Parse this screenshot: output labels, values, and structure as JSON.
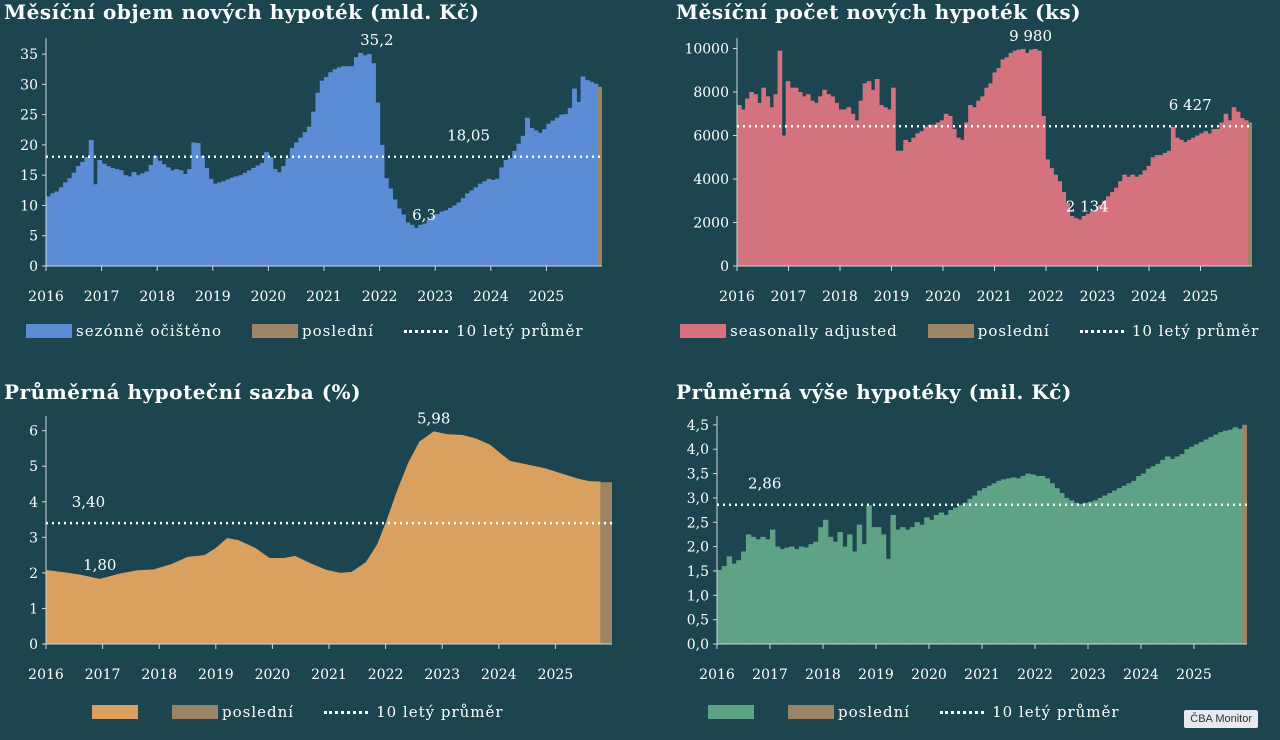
{
  "colors": {
    "bg": "#1d4550",
    "blue": "#5b8dd6",
    "red": "#d4737e",
    "orange": "#d9a060",
    "green": "#5fa386",
    "last": "#9c8466",
    "avg": "#ffffff"
  },
  "years": [
    "2016",
    "2017",
    "2018",
    "2019",
    "2020",
    "2021",
    "2022",
    "2023",
    "2024",
    "2025"
  ],
  "badge": "ČBA Monitor",
  "chart_data": [
    {
      "type": "bar",
      "title": "Měsíční objem nových hypoték (mld. Kč)",
      "color_key": "blue",
      "x_start": 2016.0,
      "ylim": [
        0,
        37
      ],
      "yticks": [
        "0",
        "5",
        "10",
        "15",
        "20",
        "25",
        "30",
        "35"
      ],
      "yticks_vals": [
        0,
        5,
        10,
        15,
        20,
        25,
        30,
        35
      ],
      "average": 18.05,
      "average_label": "18,05",
      "annotations": [
        {
          "text": "35,2",
          "x": 2021.95,
          "y": 35.2
        },
        {
          "text": "6,3",
          "x": 2022.8,
          "y": 6.3
        }
      ],
      "legend": {
        "series": "sezónně očištěno",
        "last": "poslední",
        "avg": "10 letý průměr"
      },
      "values": [
        11.5,
        12.0,
        12.3,
        13.0,
        13.8,
        14.5,
        15.4,
        16.5,
        17.2,
        18.0,
        20.8,
        13.5,
        17.5,
        16.9,
        16.5,
        16.2,
        16.0,
        15.8,
        15.0,
        14.8,
        15.5,
        15.0,
        15.3,
        15.6,
        16.7,
        18.2,
        17.4,
        16.8,
        16.3,
        15.8,
        16.0,
        15.8,
        15.2,
        16.0,
        20.4,
        20.3,
        18.2,
        16.2,
        14.4,
        13.6,
        13.8,
        14.0,
        14.3,
        14.6,
        14.8,
        15.0,
        15.4,
        15.8,
        16.2,
        16.6,
        17.0,
        18.8,
        18.0,
        16.0,
        15.5,
        16.5,
        17.8,
        19.5,
        20.4,
        21.2,
        22.1,
        23.0,
        25.5,
        28.6,
        30.6,
        31.2,
        32.0,
        32.5,
        32.8,
        33.0,
        33.0,
        33.0,
        34.5,
        35.2,
        34.8,
        35.0,
        33.5,
        27.0,
        20.0,
        14.5,
        12.8,
        11.0,
        9.5,
        8.5,
        7.2,
        6.8,
        6.3,
        6.8,
        7.0,
        7.6,
        8.2,
        8.6,
        9.0,
        9.2,
        9.6,
        10.0,
        10.5,
        11.2,
        12.0,
        12.5,
        13.0,
        13.6,
        14.0,
        14.4,
        14.2,
        14.4,
        16.3,
        17.5,
        17.8,
        19.0,
        20.2,
        21.5,
        24.5,
        22.8,
        22.4,
        22.0,
        22.6,
        23.5,
        24.0,
        24.5,
        25.0,
        25.1,
        26.1,
        29.3,
        27.1,
        31.3,
        30.7,
        30.4,
        30.1
      ],
      "last": 29.6
    },
    {
      "type": "bar",
      "title": "Měsíční počet nových hypoték (ks)",
      "color_key": "red",
      "x_start": 2016.0,
      "ylim": [
        0,
        10300
      ],
      "yticks": [
        "0",
        "2000",
        "4000",
        "6000",
        "8000",
        "10000"
      ],
      "yticks_vals": [
        0,
        2000,
        4000,
        6000,
        8000,
        10000
      ],
      "average": 6427,
      "average_label": "6 427",
      "annotations": [
        {
          "text": "9 980",
          "x": 2021.7,
          "y": 9980
        },
        {
          "text": "2 134",
          "x": 2022.8,
          "y": 2134
        }
      ],
      "legend": {
        "series": "seasonally adjusted",
        "last": "poslední",
        "avg": "10 letý průměr"
      },
      "values": [
        7400,
        7200,
        7700,
        8000,
        7900,
        7500,
        8200,
        7800,
        7300,
        7900,
        9900,
        6000,
        8500,
        8200,
        8200,
        8000,
        7800,
        7900,
        7600,
        7500,
        7800,
        8100,
        7900,
        7800,
        7500,
        7200,
        7200,
        7300,
        7000,
        6700,
        7600,
        8400,
        8500,
        8100,
        8600,
        7400,
        7300,
        7200,
        8200,
        5300,
        5300,
        5800,
        5700,
        5900,
        6100,
        6200,
        6400,
        6500,
        6500,
        6600,
        6700,
        7000,
        6900,
        6300,
        5900,
        5800,
        6600,
        7400,
        7300,
        7600,
        7800,
        8200,
        8400,
        8900,
        9100,
        9500,
        9600,
        9800,
        9900,
        9950,
        9980,
        9800,
        9950,
        9980,
        9900,
        6900,
        4900,
        4500,
        4200,
        3900,
        3400,
        2900,
        2300,
        2200,
        2134,
        2300,
        2400,
        2500,
        2600,
        2800,
        3000,
        3200,
        3400,
        3600,
        3900,
        4200,
        4100,
        4200,
        4100,
        4200,
        4400,
        4600,
        5000,
        5100,
        5100,
        5200,
        5300,
        6400,
        5900,
        5800,
        5700,
        5800,
        5900,
        6000,
        6100,
        6200,
        6100,
        6300,
        6300,
        6600,
        7000,
        6700,
        7300,
        7100,
        6800,
        6700
      ],
      "last": 6600
    },
    {
      "type": "area",
      "title": "Průměrná hypoteční sazba (%)",
      "color_key": "orange",
      "x_start": 2016.0,
      "ylim": [
        0,
        6.3
      ],
      "yticks": [
        "0",
        "1",
        "2",
        "3",
        "4",
        "5",
        "6"
      ],
      "yticks_vals": [
        0,
        1,
        2,
        3,
        4,
        5,
        6
      ],
      "average": 3.4,
      "average_label": "3,40",
      "annotations": [
        {
          "text": "1,80",
          "x": 2016.95,
          "y": 1.86
        },
        {
          "text": "5,98",
          "x": 2022.85,
          "y": 5.98
        }
      ],
      "legend": {
        "series": "",
        "last": "poslední",
        "avg": "10 letý průměr"
      },
      "points": [
        [
          2016.0,
          2.08
        ],
        [
          2016.3,
          2.02
        ],
        [
          2016.6,
          1.95
        ],
        [
          2016.95,
          1.83
        ],
        [
          2017.3,
          1.98
        ],
        [
          2017.6,
          2.07
        ],
        [
          2017.9,
          2.1
        ],
        [
          2018.2,
          2.24
        ],
        [
          2018.5,
          2.45
        ],
        [
          2018.8,
          2.5
        ],
        [
          2019.0,
          2.7
        ],
        [
          2019.2,
          2.98
        ],
        [
          2019.4,
          2.92
        ],
        [
          2019.7,
          2.7
        ],
        [
          2019.95,
          2.42
        ],
        [
          2020.2,
          2.42
        ],
        [
          2020.4,
          2.48
        ],
        [
          2020.7,
          2.25
        ],
        [
          2020.95,
          2.09
        ],
        [
          2021.2,
          2.0
        ],
        [
          2021.4,
          2.03
        ],
        [
          2021.65,
          2.3
        ],
        [
          2021.85,
          2.8
        ],
        [
          2022.0,
          3.4
        ],
        [
          2022.2,
          4.3
        ],
        [
          2022.4,
          5.1
        ],
        [
          2022.6,
          5.7
        ],
        [
          2022.85,
          5.98
        ],
        [
          2023.1,
          5.9
        ],
        [
          2023.35,
          5.88
        ],
        [
          2023.6,
          5.78
        ],
        [
          2023.85,
          5.6
        ],
        [
          2024.0,
          5.4
        ],
        [
          2024.2,
          5.15
        ],
        [
          2024.5,
          5.05
        ],
        [
          2024.8,
          4.95
        ],
        [
          2025.1,
          4.8
        ],
        [
          2025.4,
          4.65
        ],
        [
          2025.6,
          4.58
        ],
        [
          2025.8,
          4.57
        ]
      ],
      "last": 4.55
    },
    {
      "type": "bar",
      "title": "Průměrná výše hypotéky (mil. Kč)",
      "color_key": "green",
      "x_start": 2016.0,
      "ylim": [
        0,
        4.6
      ],
      "yticks": [
        "0,0",
        "0,5",
        "1,0",
        "1,5",
        "2,0",
        "2,5",
        "3,0",
        "3,5",
        "4,0",
        "4,5"
      ],
      "yticks_vals": [
        0,
        0.5,
        1,
        1.5,
        2,
        2.5,
        3,
        3.5,
        4,
        4.5
      ],
      "average": 2.86,
      "average_label": "2,86",
      "annotations": [],
      "legend": {
        "series": "",
        "last": "poslední",
        "avg": "10 letý průměr"
      },
      "values": [
        1.52,
        1.6,
        1.8,
        1.65,
        1.72,
        1.9,
        2.25,
        2.2,
        2.15,
        2.2,
        2.15,
        2.35,
        2.0,
        1.95,
        1.98,
        2.0,
        1.95,
        2.0,
        1.98,
        2.05,
        2.1,
        2.4,
        2.55,
        2.2,
        2.1,
        2.3,
        2.0,
        2.25,
        1.9,
        2.45,
        2.05,
        2.85,
        2.4,
        2.4,
        2.25,
        1.75,
        2.65,
        2.35,
        2.4,
        2.35,
        2.4,
        2.5,
        2.45,
        2.6,
        2.55,
        2.65,
        2.7,
        2.65,
        2.75,
        2.8,
        2.85,
        2.9,
        2.98,
        3.05,
        3.15,
        3.2,
        3.25,
        3.3,
        3.35,
        3.38,
        3.4,
        3.42,
        3.4,
        3.45,
        3.5,
        3.48,
        3.45,
        3.45,
        3.4,
        3.3,
        3.2,
        3.1,
        3.0,
        2.95,
        2.9,
        2.88,
        2.9,
        2.92,
        2.95,
        3.0,
        3.05,
        3.1,
        3.15,
        3.2,
        3.25,
        3.3,
        3.35,
        3.45,
        3.5,
        3.6,
        3.65,
        3.7,
        3.78,
        3.85,
        3.8,
        3.85,
        3.9,
        4.0,
        4.05,
        4.1,
        4.15,
        4.2,
        4.25,
        4.3,
        4.35,
        4.38,
        4.4,
        4.45,
        4.42
      ],
      "last": 4.5
    }
  ]
}
